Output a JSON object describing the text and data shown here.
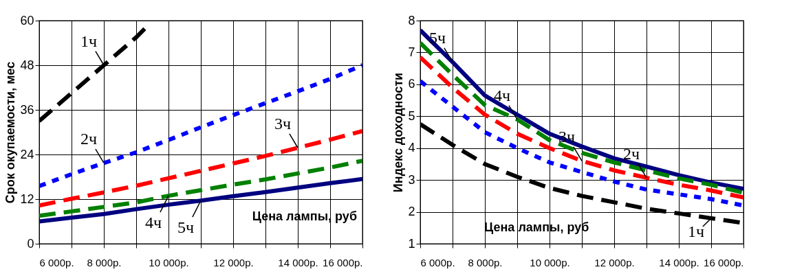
{
  "chart_data": [
    {
      "type": "line",
      "ylabel": "Срок окупаемости, мес",
      "xlabel": "Цена лампы, руб",
      "x": [
        6000,
        7000,
        8000,
        9000,
        10000,
        11000,
        12000,
        13000,
        14000,
        15000,
        16000
      ],
      "series": [
        {
          "color": "#000000",
          "line_style": "dashed",
          "x": [
            6000,
            7000,
            8000,
            9000,
            9400
          ],
          "values": [
            33,
            40.5,
            48,
            55.5,
            59
          ]
        },
        {
          "color": "#0000ff",
          "line_style": "dotted",
          "values": [
            15.5,
            18.7,
            21.7,
            24.6,
            27.9,
            31.3,
            34.6,
            37.8,
            41,
            44.3,
            48
          ]
        },
        {
          "color": "#ff0000",
          "line_style": "dashed",
          "values": [
            10.3,
            12.1,
            13.8,
            15.6,
            17.6,
            19.6,
            21.6,
            23.6,
            25.8,
            28,
            30.3
          ]
        },
        {
          "color": "#008000",
          "line_style": "dashed",
          "values": [
            7.5,
            8.7,
            9.9,
            11.1,
            12.9,
            14.4,
            15.9,
            17.3,
            18.9,
            20.5,
            22.3
          ]
        },
        {
          "color": "#000080",
          "line_style": "solid",
          "values": [
            6,
            7,
            8,
            9.3,
            10.5,
            11.6,
            12.8,
            13.9,
            15.1,
            16.3,
            17.4
          ]
        }
      ],
      "xlim": [
        6000,
        16000
      ],
      "xticks": [
        {
          "value": 6000,
          "label": "6 000р."
        },
        {
          "value": 7000,
          "label": null
        },
        {
          "value": 8000,
          "label": "8 000р."
        },
        {
          "value": 9000,
          "label": null
        },
        {
          "value": 10000,
          "label": "10 000р."
        },
        {
          "value": 11000,
          "label": null
        },
        {
          "value": 12000,
          "label": "12 000р."
        },
        {
          "value": 13000,
          "label": null
        },
        {
          "value": 14000,
          "label": "14 000р."
        },
        {
          "value": 15000,
          "label": null
        },
        {
          "value": 16000,
          "label": "16 000р."
        }
      ],
      "ylim": [
        0,
        60
      ],
      "yticks": [
        0,
        12,
        24,
        36,
        48,
        60
      ],
      "grid": true,
      "annotations": [
        {
          "text": "1ч",
          "x": 8000,
          "y": 48
        },
        {
          "text": "2ч",
          "x": 8000,
          "y": 21.7
        },
        {
          "text": "3ч",
          "x": 14000,
          "y": 25.8
        },
        {
          "text": "4ч",
          "x": 10000,
          "y": 12.9
        },
        {
          "text": "5ч",
          "x": 11000,
          "y": 11.6
        }
      ]
    },
    {
      "type": "line",
      "ylabel": "Индекс доходности",
      "xlabel": "Цена лампы, руб",
      "x": [
        6000,
        7000,
        8000,
        9000,
        10000,
        11000,
        12000,
        13000,
        14000,
        15000,
        16000
      ],
      "series": [
        {
          "color": "#000080",
          "line_style": "solid",
          "values": [
            7.7,
            6.7,
            5.65,
            5.05,
            4.45,
            4.05,
            3.68,
            3.42,
            3.15,
            2.92,
            2.72
          ]
        },
        {
          "color": "#008000",
          "line_style": "dashed",
          "values": [
            7.3,
            6.3,
            5.35,
            4.9,
            4.25,
            3.85,
            3.55,
            3.3,
            3.05,
            2.85,
            2.6
          ]
        },
        {
          "color": "#ff0000",
          "line_style": "dashed",
          "values": [
            6.85,
            5.9,
            5.05,
            4.45,
            4.0,
            3.6,
            3.3,
            3.07,
            2.85,
            2.67,
            2.45
          ]
        },
        {
          "color": "#0000ff",
          "line_style": "dotted",
          "values": [
            6.1,
            5.3,
            4.5,
            4.0,
            3.55,
            3.25,
            2.95,
            2.7,
            2.55,
            2.4,
            2.2
          ]
        },
        {
          "color": "#000000",
          "line_style": "dashed",
          "values": [
            4.75,
            4.1,
            3.5,
            3.1,
            2.75,
            2.5,
            2.3,
            2.1,
            1.95,
            1.8,
            1.65
          ]
        }
      ],
      "xlim": [
        6000,
        16000
      ],
      "xticks": [
        {
          "value": 6000,
          "label": "6 000р."
        },
        {
          "value": 7000,
          "label": null
        },
        {
          "value": 8000,
          "label": "8 000р."
        },
        {
          "value": 9000,
          "label": null
        },
        {
          "value": 10000,
          "label": "10 000р."
        },
        {
          "value": 11000,
          "label": null
        },
        {
          "value": 12000,
          "label": "12 000р."
        },
        {
          "value": 13000,
          "label": null
        },
        {
          "value": 14000,
          "label": "14 000р."
        },
        {
          "value": 15000,
          "label": null
        },
        {
          "value": 16000,
          "label": "16 000р."
        }
      ],
      "ylim": [
        1,
        8
      ],
      "yticks": [
        1,
        2,
        3,
        4,
        5,
        6,
        7,
        8
      ],
      "grid": true,
      "annotations": [
        {
          "text": "5ч",
          "x": 7000,
          "y": 6.7
        },
        {
          "text": "4ч",
          "x": 9000,
          "y": 4.9
        },
        {
          "text": "3ч",
          "x": 11000,
          "y": 3.6
        },
        {
          "text": "2ч",
          "x": 13000,
          "y": 3.07
        },
        {
          "text": "1ч",
          "x": 15000,
          "y": 1.8
        }
      ]
    }
  ]
}
